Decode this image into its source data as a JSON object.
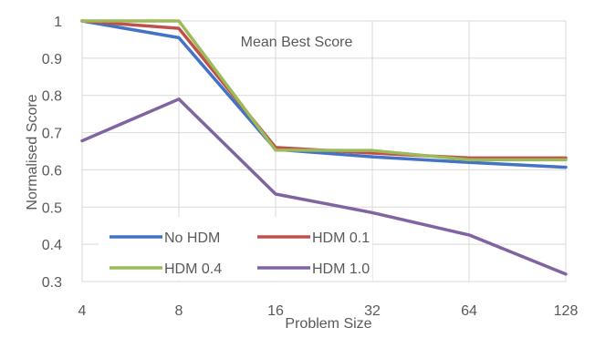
{
  "chart_data": {
    "type": "line",
    "title": "Mean Best Score",
    "xlabel": "Problem Size",
    "ylabel": "Normalised Score",
    "categories": [
      "4",
      "8",
      "16",
      "32",
      "64",
      "128"
    ],
    "ylim": [
      0.3,
      1.0
    ],
    "yticks": [
      "0.3",
      "0.4",
      "0.5",
      "0.6",
      "0.7",
      "0.8",
      "0.9",
      "1"
    ],
    "grid": true,
    "legend_position": "bottom-left",
    "series": [
      {
        "name": "No HDM",
        "color": "#4472C4",
        "values": [
          1.0,
          0.955,
          0.655,
          0.635,
          0.62,
          0.607
        ]
      },
      {
        "name": "HDM 0.1",
        "color": "#C0504D",
        "values": [
          1.0,
          0.98,
          0.66,
          0.645,
          0.632,
          0.632
        ]
      },
      {
        "name": "HDM 0.4",
        "color": "#9BBB59",
        "values": [
          1.0,
          1.0,
          0.653,
          0.652,
          0.627,
          0.627
        ]
      },
      {
        "name": "HDM 1.0",
        "color": "#8064A2",
        "values": [
          0.678,
          0.79,
          0.535,
          0.485,
          0.425,
          0.32
        ]
      }
    ]
  }
}
